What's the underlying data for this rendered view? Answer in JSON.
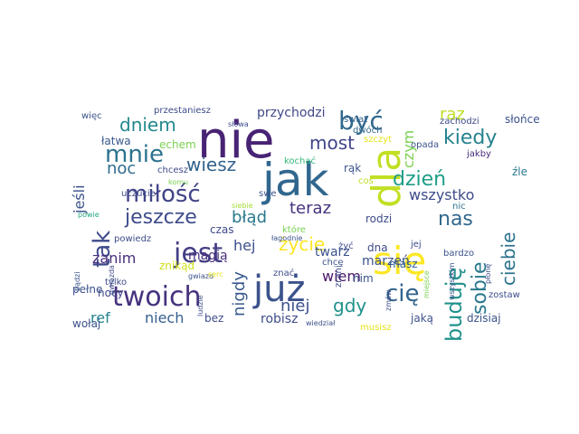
{
  "words": [
    {
      "text": "nie",
      "color": "#482374"
    },
    {
      "text": "jak",
      "color": "#31678e"
    },
    {
      "text": "dla",
      "color": "#c2df23"
    },
    {
      "text": "się",
      "color": "#fde725"
    },
    {
      "text": "już",
      "color": "#3b528b"
    },
    {
      "text": "twoich",
      "color": "#46327e"
    },
    {
      "text": "jest",
      "color": "#433e85"
    },
    {
      "text": "mnie",
      "color": "#2c728e"
    },
    {
      "text": "miłość",
      "color": "#414487"
    },
    {
      "text": "jeszcze",
      "color": "#3e4c8a"
    },
    {
      "text": "tak",
      "color": "#3e4989"
    },
    {
      "text": "być",
      "color": "#31688e"
    },
    {
      "text": "dzień",
      "color": "#1f9e89"
    },
    {
      "text": "kiedy",
      "color": "#26828e"
    },
    {
      "text": "buduję",
      "color": "#21918c"
    },
    {
      "text": "sobie",
      "color": "#2a788e"
    },
    {
      "text": "ciebie",
      "color": "#2c728e"
    },
    {
      "text": "cię",
      "color": "#33638d"
    },
    {
      "text": "życie",
      "color": "#fde725"
    },
    {
      "text": "dniem",
      "color": "#23888e"
    },
    {
      "text": "wiesz",
      "color": "#33638d"
    },
    {
      "text": "most",
      "color": "#404588"
    },
    {
      "text": "raz",
      "color": "#bddf26"
    },
    {
      "text": "czym",
      "color": "#7ad151"
    },
    {
      "text": "noc",
      "color": "#2f6c8e"
    },
    {
      "text": "jeśli",
      "color": "#3b528b"
    },
    {
      "text": "błąd",
      "color": "#2a788e"
    },
    {
      "text": "teraz",
      "color": "#46327e"
    },
    {
      "text": "nas",
      "color": "#31688e"
    },
    {
      "text": "wszystko",
      "color": "#3e4c8a"
    },
    {
      "text": "hej",
      "color": "#3d4e8a"
    },
    {
      "text": "gdy",
      "color": "#21918c"
    },
    {
      "text": "niej",
      "color": "#3b528b"
    },
    {
      "text": "nigdy",
      "color": "#38598c"
    },
    {
      "text": "zanim",
      "color": "#472d7b"
    },
    {
      "text": "nocy",
      "color": "#3e4989"
    },
    {
      "text": "ref",
      "color": "#25848e"
    },
    {
      "text": "niech",
      "color": "#355f8d"
    },
    {
      "text": "wiem",
      "color": "#481769"
    },
    {
      "text": "nim",
      "color": "#3a548c"
    },
    {
      "text": "przychodzi",
      "color": "#3f4788"
    },
    {
      "text": "przestaniesz",
      "color": "#3e4c8a"
    },
    {
      "text": "więc",
      "color": "#3b528b"
    },
    {
      "text": "łatwa",
      "color": "#38598c"
    },
    {
      "text": "echem",
      "color": "#7ad151"
    },
    {
      "text": "słońce",
      "color": "#3b528b"
    },
    {
      "text": "zachodzi",
      "color": "#3e4c8a"
    },
    {
      "text": "szczyt",
      "color": "#e5e419"
    },
    {
      "text": "świat",
      "color": "#33638d"
    },
    {
      "text": "dwóch",
      "color": "#31688e"
    },
    {
      "text": "opada",
      "color": "#3b528b"
    },
    {
      "text": "jakby",
      "color": "#472d7b"
    },
    {
      "text": "źle",
      "color": "#2a788e"
    },
    {
      "text": "chcesz",
      "color": "#3e4c8a"
    },
    {
      "text": "kochać",
      "color": "#35b779"
    },
    {
      "text": "komu",
      "color": "#7ad151"
    },
    {
      "text": "rąk",
      "color": "#3b528b"
    },
    {
      "text": "coś",
      "color": "#bddf26"
    },
    {
      "text": "uczucie",
      "color": "#3e4c8a"
    },
    {
      "text": "powie",
      "color": "#22a884"
    },
    {
      "text": "swe",
      "color": "#3b528b"
    },
    {
      "text": "siebie",
      "color": "#a5db36"
    },
    {
      "text": "rodzi",
      "color": "#3e4c8a"
    },
    {
      "text": "nic",
      "color": "#2c728e"
    },
    {
      "text": "magią",
      "color": "#472d7b"
    },
    {
      "text": "twarz",
      "color": "#3b528b"
    },
    {
      "text": "które",
      "color": "#7ad151"
    },
    {
      "text": "czas",
      "color": "#3e4c8a"
    },
    {
      "text": "łagodnie",
      "color": "#3b528b"
    },
    {
      "text": "marzeń",
      "color": "#3b528b"
    },
    {
      "text": "bardzo",
      "color": "#3b528b"
    },
    {
      "text": "powiedz",
      "color": "#3e4c8a"
    },
    {
      "text": "znikąd",
      "color": "#d0e11c"
    },
    {
      "text": "żyć",
      "color": "#3e4c8a"
    },
    {
      "text": "masz",
      "color": "#33638d"
    },
    {
      "text": "jej",
      "color": "#3e4c8a"
    },
    {
      "text": "dna",
      "color": "#3e4c8a"
    },
    {
      "text": "bądzi",
      "color": "#3b528b"
    },
    {
      "text": "gwiazda",
      "color": "#3e4c8a"
    },
    {
      "text": "gwiazd",
      "color": "#3b528b"
    },
    {
      "text": "serc",
      "color": "#e5e419"
    },
    {
      "text": "tylko",
      "color": "#3e4c8a"
    },
    {
      "text": "znać",
      "color": "#3e4c8a"
    },
    {
      "text": "chcę",
      "color": "#3b528b"
    },
    {
      "text": "zrani",
      "color": "#3e4c8a"
    },
    {
      "text": "miejsce",
      "color": "#7ad151"
    },
    {
      "text": "zostaw",
      "color": "#3e4c8a"
    },
    {
      "text": "wszystkim",
      "color": "#3b528b"
    },
    {
      "text": "płonę",
      "color": "#3e4c8a"
    },
    {
      "text": "pełne",
      "color": "#3b528b"
    },
    {
      "text": "zmów",
      "color": "#3e4c8a"
    },
    {
      "text": "wołaj",
      "color": "#3b528b"
    },
    {
      "text": "bez",
      "color": "#3e4c8a"
    },
    {
      "text": "robisz",
      "color": "#3e4c8a"
    },
    {
      "text": "jaką",
      "color": "#3b528b"
    },
    {
      "text": "musisz",
      "color": "#e5e419"
    },
    {
      "text": "wiedział",
      "color": "#3b528b"
    },
    {
      "text": "ludzie",
      "color": "#3e4c8a"
    },
    {
      "text": "dzisiaj",
      "color": "#3b528b"
    },
    {
      "text": "słowa",
      "color": "#3e4c8a"
    }
  ]
}
